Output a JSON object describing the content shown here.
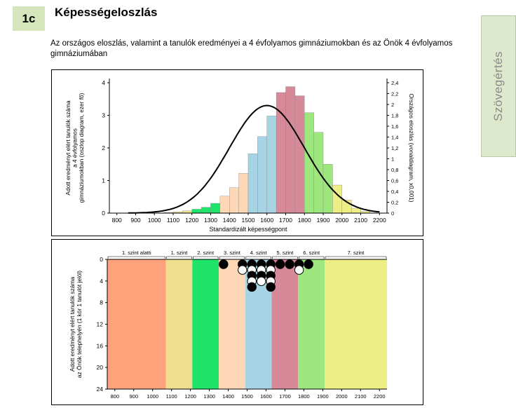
{
  "badge": "1c",
  "title": "Képességeloszlás",
  "subtitle": "Az országos eloszlás, valamint a tanulók eredményei a 4 évfolyamos gimnáziumokban és az Önök 4 évfolyamos gimnáziumában",
  "side_tab": "Szövegértés",
  "colors": {
    "below1": "#fea27c",
    "l1": "#f0e08d",
    "l2": "#1ee56a",
    "l3": "#fed8b6",
    "l4": "#a6d4e5",
    "l5": "#d68998",
    "l6": "#9ee77e",
    "l7": "#eeee86"
  },
  "chart_data": [
    {
      "type": "bar",
      "title": "",
      "xlabel": "Standardizált képességpont",
      "ylabel": "Adott eredményt elért tanulók száma a 4 évfolyamos gimnáziumokban (oszlop diagram, ezer fő)",
      "y2label": "Országos eloszlás (vonaldiagram, x0,001)",
      "xlim": [
        760,
        2240
      ],
      "ylim": [
        0,
        4
      ],
      "y2lim": [
        0,
        2.4
      ],
      "xticks": [
        "800",
        "900",
        "1000",
        "1100",
        "1200",
        "1300",
        "1400",
        "1500",
        "1600",
        "1700",
        "1800",
        "1900",
        "2000",
        "2100",
        "2200"
      ],
      "yticks": [
        "0",
        "1",
        "2",
        "3",
        "4"
      ],
      "y2ticks": [
        "0",
        "0,2",
        "0,4",
        "0,6",
        "0,8",
        "1",
        "1,2",
        "1,4",
        "1,6",
        "1,8",
        "2",
        "2,2",
        "2,4"
      ],
      "bin_width": 50,
      "bins": [
        {
          "start": 1050,
          "value": 0.02,
          "level": "l1"
        },
        {
          "start": 1100,
          "value": 0.04,
          "level": "l1"
        },
        {
          "start": 1150,
          "value": 0.07,
          "level": "l1"
        },
        {
          "start": 1200,
          "value": 0.12,
          "level": "l2"
        },
        {
          "start": 1250,
          "value": 0.18,
          "level": "l2"
        },
        {
          "start": 1300,
          "value": 0.3,
          "level": "l2"
        },
        {
          "start": 1350,
          "value": 0.52,
          "level": "l3"
        },
        {
          "start": 1400,
          "value": 0.78,
          "level": "l3"
        },
        {
          "start": 1450,
          "value": 1.22,
          "level": "l3"
        },
        {
          "start": 1500,
          "value": 1.82,
          "level": "l4"
        },
        {
          "start": 1550,
          "value": 2.35,
          "level": "l4"
        },
        {
          "start": 1600,
          "value": 2.98,
          "level": "l4"
        },
        {
          "start": 1650,
          "value": 3.7,
          "level": "l5"
        },
        {
          "start": 1700,
          "value": 3.88,
          "level": "l5"
        },
        {
          "start": 1750,
          "value": 3.6,
          "level": "l5"
        },
        {
          "start": 1800,
          "value": 3.08,
          "level": "l6"
        },
        {
          "start": 1850,
          "value": 2.48,
          "level": "l6"
        },
        {
          "start": 1900,
          "value": 1.5,
          "level": "l6"
        },
        {
          "start": 1950,
          "value": 0.86,
          "level": "l7"
        },
        {
          "start": 2000,
          "value": 0.4,
          "level": "l7"
        },
        {
          "start": 2050,
          "value": 0.15,
          "level": "l7"
        },
        {
          "start": 2100,
          "value": 0.05,
          "level": "l7"
        }
      ],
      "distribution": {
        "mean": 1600,
        "sd": 200,
        "peak": 1.98
      }
    },
    {
      "type": "scatter",
      "ylabel": "Adott eredményt elért tanulók száma az Önök telephelyén (1 kör 1 tanulót jelöl)",
      "xlim": [
        760,
        2240
      ],
      "ylim": [
        0,
        24
      ],
      "xticks": [
        "800",
        "900",
        "1000",
        "1100",
        "1200",
        "1300",
        "1400",
        "1500",
        "1600",
        "1700",
        "1800",
        "1900",
        "2000",
        "2100",
        "2200"
      ],
      "yticks": [
        "0",
        "4",
        "8",
        "12",
        "16",
        "20",
        "24"
      ],
      "levels": [
        {
          "id": "below1",
          "label": "1. szint alatti",
          "from": 760,
          "to": 1070
        },
        {
          "id": "l1",
          "label": "1. szint",
          "from": 1070,
          "to": 1210
        },
        {
          "id": "l2",
          "label": "2. szint",
          "from": 1210,
          "to": 1350
        },
        {
          "id": "l3",
          "label": "3. szint",
          "from": 1350,
          "to": 1490
        },
        {
          "id": "l4",
          "label": "4. szint",
          "from": 1490,
          "to": 1630
        },
        {
          "id": "l5",
          "label": "5. szint",
          "from": 1630,
          "to": 1770
        },
        {
          "id": "l6",
          "label": "6. szint",
          "from": 1770,
          "to": 1910
        },
        {
          "id": "l7",
          "label": "7. szint",
          "from": 1910,
          "to": 2240
        }
      ],
      "columns": [
        {
          "x": 1375,
          "count": 1
        },
        {
          "x": 1475,
          "count": 2
        },
        {
          "x": 1525,
          "count": 5
        },
        {
          "x": 1575,
          "count": 4
        },
        {
          "x": 1625,
          "count": 5
        },
        {
          "x": 1675,
          "count": 1
        },
        {
          "x": 1725,
          "count": 1
        },
        {
          "x": 1775,
          "count": 2
        },
        {
          "x": 1825,
          "count": 1
        }
      ]
    }
  ]
}
